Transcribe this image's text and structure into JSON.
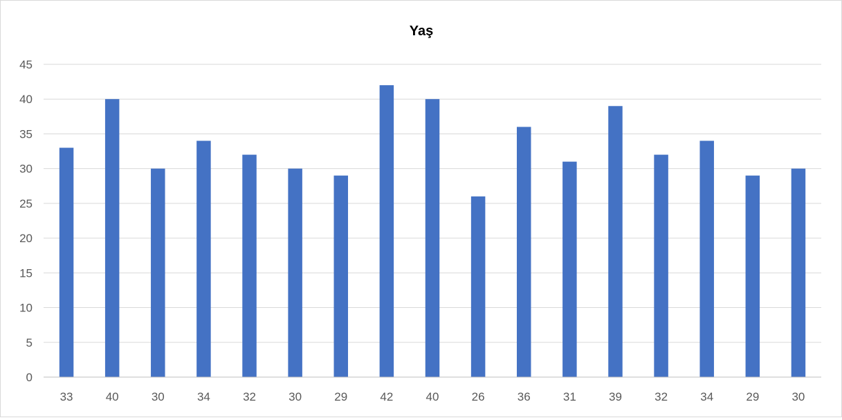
{
  "chart_data": {
    "type": "bar",
    "title": "Yaş",
    "xlabel": "",
    "ylabel": "",
    "categories": [
      "33",
      "40",
      "30",
      "34",
      "32",
      "30",
      "29",
      "42",
      "40",
      "26",
      "36",
      "31",
      "39",
      "32",
      "34",
      "29",
      "30"
    ],
    "series": [
      {
        "values": [
          33,
          40,
          30,
          34,
          32,
          30,
          29,
          42,
          40,
          26,
          36,
          31,
          39,
          32,
          34,
          29,
          30
        ]
      }
    ],
    "ylim": [
      0,
      45
    ],
    "yticks": [
      0,
      5,
      10,
      15,
      20,
      25,
      30,
      35,
      40,
      45
    ],
    "grid": true,
    "legend": "none",
    "colors": {
      "bar": "#4472c4",
      "grid": "#d9d9d9",
      "axis": "#bfbfbf",
      "tick_text": "#595959"
    }
  }
}
